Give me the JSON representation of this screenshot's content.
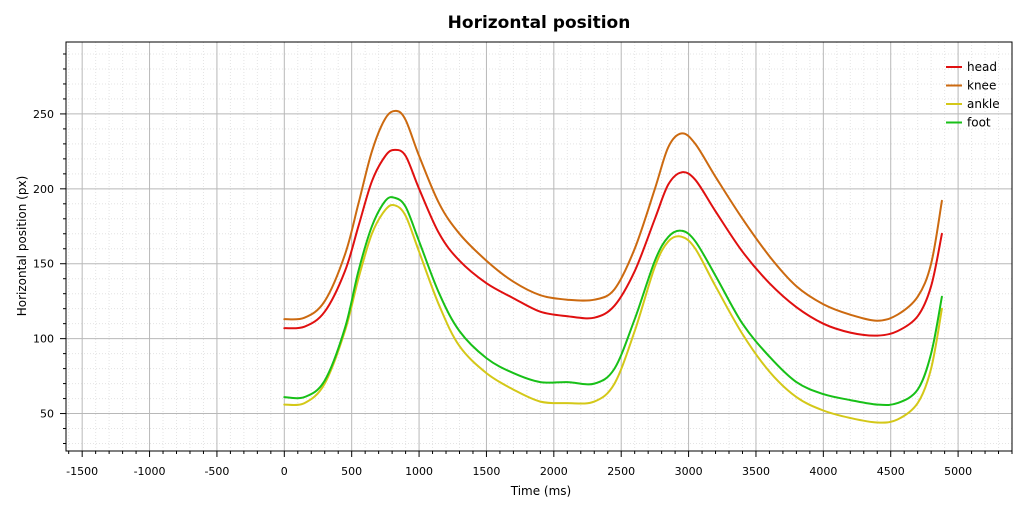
{
  "chart_data": {
    "type": "line",
    "title": "Horizontal position",
    "xlabel": "Time (ms)",
    "ylabel": "Horizontal position (px)",
    "xlim": [
      -1620,
      5400
    ],
    "ylim": [
      25,
      298
    ],
    "x_ticks": [
      -1500,
      -1000,
      -500,
      0,
      500,
      1000,
      1500,
      2000,
      2500,
      3000,
      3500,
      4000,
      4500,
      5000
    ],
    "y_ticks": [
      50,
      100,
      150,
      200,
      250
    ],
    "grid": true,
    "legend_position": "top-right",
    "series": [
      {
        "name": "head",
        "color": "#e01010",
        "points": [
          [
            0,
            107
          ],
          [
            150,
            108
          ],
          [
            300,
            118
          ],
          [
            450,
            145
          ],
          [
            550,
            175
          ],
          [
            650,
            205
          ],
          [
            750,
            222
          ],
          [
            820,
            226
          ],
          [
            900,
            222
          ],
          [
            1000,
            200
          ],
          [
            1150,
            170
          ],
          [
            1300,
            152
          ],
          [
            1500,
            137
          ],
          [
            1700,
            127
          ],
          [
            1900,
            118
          ],
          [
            2100,
            115
          ],
          [
            2300,
            114
          ],
          [
            2450,
            122
          ],
          [
            2600,
            145
          ],
          [
            2750,
            180
          ],
          [
            2850,
            203
          ],
          [
            2950,
            211
          ],
          [
            3050,
            206
          ],
          [
            3200,
            185
          ],
          [
            3400,
            158
          ],
          [
            3600,
            137
          ],
          [
            3800,
            121
          ],
          [
            4000,
            110
          ],
          [
            4200,
            104
          ],
          [
            4400,
            102
          ],
          [
            4550,
            105
          ],
          [
            4700,
            115
          ],
          [
            4800,
            135
          ],
          [
            4880,
            170
          ]
        ]
      },
      {
        "name": "knee",
        "color": "#cc6a10",
        "points": [
          [
            0,
            113
          ],
          [
            150,
            114
          ],
          [
            300,
            125
          ],
          [
            450,
            156
          ],
          [
            550,
            190
          ],
          [
            650,
            225
          ],
          [
            750,
            247
          ],
          [
            830,
            252
          ],
          [
            900,
            246
          ],
          [
            1000,
            222
          ],
          [
            1150,
            190
          ],
          [
            1300,
            170
          ],
          [
            1500,
            152
          ],
          [
            1700,
            138
          ],
          [
            1900,
            129
          ],
          [
            2100,
            126
          ],
          [
            2300,
            126
          ],
          [
            2450,
            133
          ],
          [
            2600,
            160
          ],
          [
            2750,
            200
          ],
          [
            2850,
            228
          ],
          [
            2950,
            237
          ],
          [
            3050,
            230
          ],
          [
            3200,
            208
          ],
          [
            3400,
            180
          ],
          [
            3600,
            155
          ],
          [
            3800,
            135
          ],
          [
            4000,
            123
          ],
          [
            4200,
            116
          ],
          [
            4400,
            112
          ],
          [
            4550,
            116
          ],
          [
            4700,
            128
          ],
          [
            4800,
            150
          ],
          [
            4880,
            192
          ]
        ]
      },
      {
        "name": "ankle",
        "color": "#d4c818",
        "points": [
          [
            0,
            56
          ],
          [
            150,
            57
          ],
          [
            300,
            70
          ],
          [
            450,
            105
          ],
          [
            550,
            140
          ],
          [
            650,
            170
          ],
          [
            750,
            186
          ],
          [
            820,
            189
          ],
          [
            900,
            182
          ],
          [
            1000,
            158
          ],
          [
            1150,
            122
          ],
          [
            1300,
            95
          ],
          [
            1500,
            77
          ],
          [
            1700,
            66
          ],
          [
            1900,
            58
          ],
          [
            2100,
            57
          ],
          [
            2300,
            58
          ],
          [
            2450,
            70
          ],
          [
            2600,
            105
          ],
          [
            2750,
            148
          ],
          [
            2850,
            165
          ],
          [
            2950,
            168
          ],
          [
            3050,
            160
          ],
          [
            3200,
            135
          ],
          [
            3400,
            103
          ],
          [
            3600,
            78
          ],
          [
            3800,
            61
          ],
          [
            4000,
            52
          ],
          [
            4200,
            47
          ],
          [
            4400,
            44
          ],
          [
            4550,
            46
          ],
          [
            4700,
            57
          ],
          [
            4800,
            80
          ],
          [
            4880,
            120
          ]
        ]
      },
      {
        "name": "foot",
        "color": "#18c018",
        "points": [
          [
            0,
            61
          ],
          [
            150,
            61
          ],
          [
            300,
            72
          ],
          [
            450,
            107
          ],
          [
            550,
            145
          ],
          [
            650,
            175
          ],
          [
            750,
            192
          ],
          [
            820,
            194
          ],
          [
            900,
            188
          ],
          [
            1000,
            165
          ],
          [
            1150,
            130
          ],
          [
            1300,
            105
          ],
          [
            1500,
            87
          ],
          [
            1700,
            77
          ],
          [
            1900,
            71
          ],
          [
            2100,
            71
          ],
          [
            2300,
            70
          ],
          [
            2450,
            80
          ],
          [
            2600,
            113
          ],
          [
            2750,
            152
          ],
          [
            2850,
            168
          ],
          [
            2950,
            172
          ],
          [
            3050,
            165
          ],
          [
            3200,
            142
          ],
          [
            3400,
            110
          ],
          [
            3600,
            88
          ],
          [
            3800,
            71
          ],
          [
            4000,
            63
          ],
          [
            4200,
            59
          ],
          [
            4400,
            56
          ],
          [
            4550,
            57
          ],
          [
            4700,
            66
          ],
          [
            4800,
            90
          ],
          [
            4880,
            128
          ]
        ]
      }
    ]
  }
}
